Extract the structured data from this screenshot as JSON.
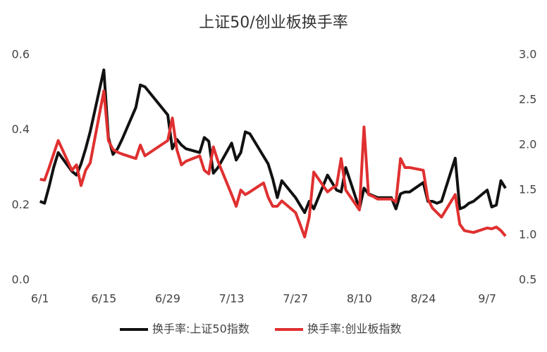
{
  "chart_data": {
    "type": "line",
    "title": "上证50/创业板换手率",
    "x": [
      0,
      1,
      2,
      3,
      4,
      7,
      8,
      9,
      10,
      11,
      14,
      15,
      16,
      17,
      18,
      21,
      22,
      23,
      28,
      29,
      30,
      31,
      32,
      35,
      36,
      37,
      38,
      39,
      42,
      43,
      44,
      45,
      46,
      49,
      50,
      51,
      52,
      53,
      56,
      57,
      58,
      59,
      60,
      63,
      64,
      65,
      66,
      67,
      70,
      71,
      72,
      73,
      74,
      77,
      78,
      79,
      80,
      81,
      84,
      85,
      86,
      87,
      88,
      91,
      92,
      93,
      94,
      95,
      98,
      99,
      100,
      101,
      102
    ],
    "xlim": [
      -1.5,
      104
    ],
    "xticks": [
      {
        "value": 0,
        "label": "6/1"
      },
      {
        "value": 14,
        "label": "6/15"
      },
      {
        "value": 28,
        "label": "6/29"
      },
      {
        "value": 42,
        "label": "7/13"
      },
      {
        "value": 56,
        "label": "7/27"
      },
      {
        "value": 70,
        "label": "8/10"
      },
      {
        "value": 84,
        "label": "8/24"
      },
      {
        "value": 98,
        "label": "9/7"
      }
    ],
    "ylim": [
      0,
      0.6
    ],
    "yticks": [
      {
        "value": 0,
        "label": "0.0"
      },
      0.2,
      0.4,
      0.6
    ],
    "y2lim": [
      0.5,
      3.0
    ],
    "y2ticks": [
      0.5,
      {
        "value": 1,
        "label": "1.0"
      },
      1.5,
      {
        "value": 2,
        "label": "2.0"
      },
      2.5,
      {
        "value": 3,
        "label": "3.0"
      }
    ],
    "series": [
      {
        "name": "换手率:上证50指数",
        "color": "#111111",
        "values": [
          0.21,
          0.205,
          0.25,
          0.3,
          0.34,
          0.29,
          0.28,
          0.31,
          0.35,
          0.395,
          0.56,
          0.38,
          0.335,
          0.35,
          0.375,
          0.46,
          0.52,
          0.515,
          0.44,
          0.35,
          0.375,
          0.36,
          0.35,
          0.34,
          0.38,
          0.37,
          0.285,
          0.3,
          0.365,
          0.32,
          0.34,
          0.395,
          0.39,
          0.33,
          0.31,
          0.27,
          0.22,
          0.265,
          0.22,
          0.2,
          0.18,
          0.21,
          0.19,
          0.28,
          0.26,
          0.24,
          0.235,
          0.3,
          0.19,
          0.245,
          0.23,
          0.225,
          0.22,
          0.22,
          0.19,
          0.23,
          0.235,
          0.235,
          0.26,
          0.21,
          0.21,
          0.205,
          0.21,
          0.325,
          0.19,
          0.195,
          0.205,
          0.21,
          0.24,
          0.195,
          0.2,
          0.265,
          0.245
        ]
      },
      {
        "name": "换手率:创业板指数",
        "color": "#e03030",
        "axis": "y2",
        "values": [
          1.62,
          1.61,
          1.75,
          1.9,
          2.05,
          1.72,
          1.78,
          1.55,
          1.72,
          1.8,
          2.6,
          2.05,
          1.95,
          1.92,
          1.9,
          1.85,
          2.0,
          1.88,
          2.05,
          2.3,
          1.95,
          1.78,
          1.82,
          1.88,
          1.72,
          1.68,
          1.98,
          1.82,
          1.45,
          1.32,
          1.5,
          1.45,
          1.48,
          1.58,
          1.42,
          1.32,
          1.32,
          1.38,
          1.25,
          1.12,
          0.98,
          1.2,
          1.7,
          1.48,
          1.52,
          1.55,
          1.85,
          1.5,
          1.28,
          2.2,
          1.45,
          1.43,
          1.4,
          1.4,
          1.37,
          1.85,
          1.75,
          1.75,
          1.72,
          1.4,
          1.3,
          1.25,
          1.2,
          1.45,
          1.12,
          1.05,
          1.04,
          1.03,
          1.08,
          1.07,
          1.09,
          1.05,
          0.99
        ]
      }
    ]
  }
}
